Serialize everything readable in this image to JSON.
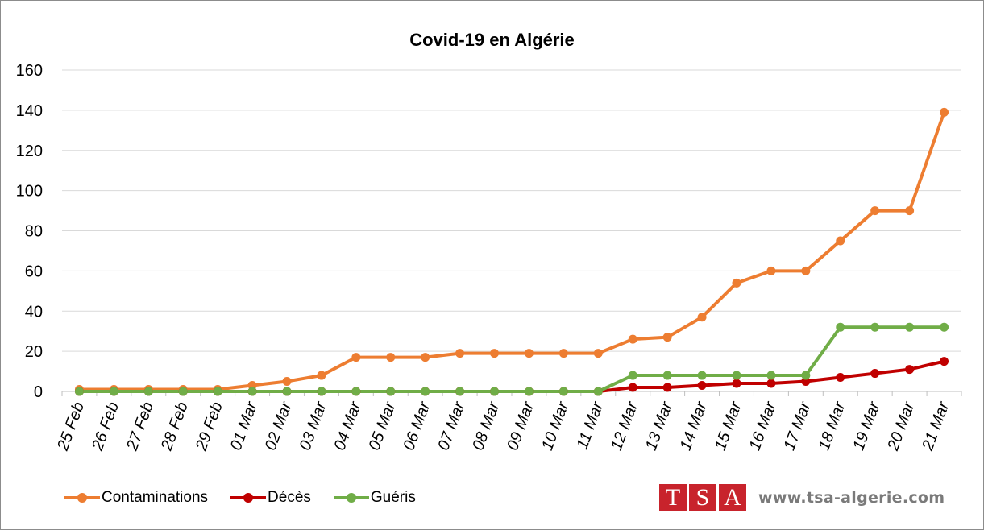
{
  "chart_data": {
    "type": "line",
    "title": "Covid-19 en Algérie",
    "xlabel": "",
    "ylabel": "",
    "ylim": [
      0,
      160
    ],
    "yticks": [
      "0",
      "20",
      "40",
      "60",
      "80",
      "100",
      "120",
      "140",
      "160"
    ],
    "grid": "horizontal",
    "legend_position": "bottom-left",
    "categories": [
      "25 Feb",
      "26 Feb",
      "27 Feb",
      "28 Feb",
      "29 Feb",
      "01 Mar",
      "02 Mar",
      "03 Mar",
      "04 Mar",
      "05 Mar",
      "06 Mar",
      "07 Mar",
      "08 Mar",
      "09 Mar",
      "10 Mar",
      "11 Mar",
      "12 Mar",
      "13 Mar",
      "14 Mar",
      "15 Mar",
      "16 Mar",
      "17 Mar",
      "18 Mar",
      "19 Mar",
      "20 Mar",
      "21 Mar"
    ],
    "series": [
      {
        "name": "Contaminations",
        "color": "#ed7d31",
        "values": [
          1,
          1,
          1,
          1,
          1,
          3,
          5,
          8,
          17,
          17,
          17,
          19,
          19,
          19,
          19,
          19,
          26,
          27,
          37,
          54,
          60,
          60,
          75,
          90,
          90,
          139
        ]
      },
      {
        "name": "Décès",
        "color": "#c00000",
        "values": [
          0,
          0,
          0,
          0,
          0,
          0,
          0,
          0,
          0,
          0,
          0,
          0,
          0,
          0,
          0,
          0,
          2,
          2,
          3,
          4,
          4,
          5,
          7,
          9,
          11,
          15
        ]
      },
      {
        "name": "Guéris",
        "color": "#70ad47",
        "values": [
          0,
          0,
          0,
          0,
          0,
          0,
          0,
          0,
          0,
          0,
          0,
          0,
          0,
          0,
          0,
          0,
          8,
          8,
          8,
          8,
          8,
          8,
          32,
          32,
          32,
          32
        ]
      }
    ]
  },
  "brand": {
    "letters": [
      "T",
      "S",
      "A"
    ],
    "url": "www.tsa-algerie.com",
    "color": "#c8232c"
  }
}
